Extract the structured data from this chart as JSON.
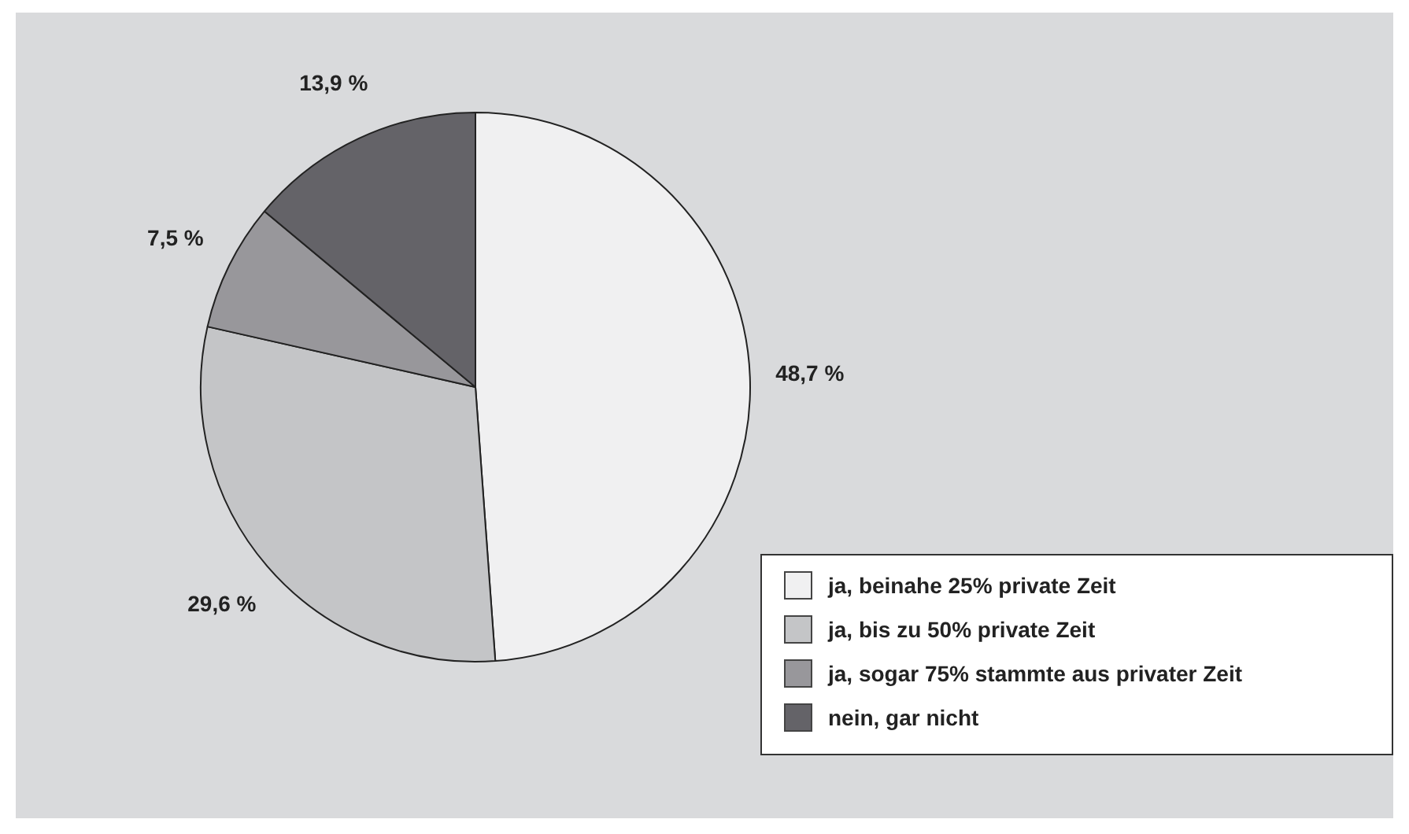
{
  "chart_data": {
    "type": "pie",
    "categories": [
      "ja, beinahe 25% private Zeit",
      "ja, bis zu 50% private Zeit",
      "ja, sogar 75% stammte aus privater Zeit",
      "nein, gar nicht"
    ],
    "values": [
      48.7,
      29.6,
      7.5,
      13.9
    ],
    "colors": [
      "#f0f0f1",
      "#c4c5c7",
      "#98979b",
      "#646368"
    ],
    "value_labels": [
      "48,7 %",
      "29,6 %",
      "7,5 %",
      "13,9 %"
    ],
    "legend": "bottom right"
  }
}
